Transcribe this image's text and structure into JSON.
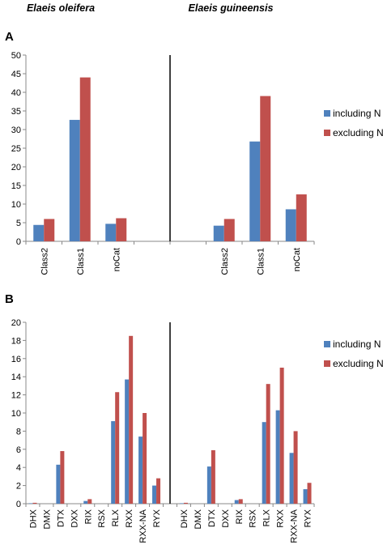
{
  "header": {
    "species_left": "Elaeis oleifera",
    "species_right": "Elaeis guineensis"
  },
  "colors": {
    "including": "#4F81BD",
    "excluding": "#C0504D"
  },
  "chart_data": [
    {
      "type": "bar",
      "panel_label": "A",
      "title": "",
      "xlabel": "",
      "ylabel": "",
      "ylim": [
        0,
        50
      ],
      "yticks": [
        0,
        5,
        10,
        15,
        20,
        25,
        30,
        35,
        40,
        45,
        50
      ],
      "grid": false,
      "legend_position": "right",
      "categories": [
        "Class2",
        "Class1",
        "noCat",
        "",
        "",
        "Class2",
        "Class1",
        "noCat"
      ],
      "series": [
        {
          "name": "including N",
          "values": [
            4.4,
            32.6,
            4.7,
            null,
            null,
            4.2,
            26.8,
            8.6
          ]
        },
        {
          "name": "excluding N",
          "values": [
            6.0,
            44.0,
            6.2,
            null,
            null,
            6.0,
            39.0,
            12.6
          ]
        }
      ]
    },
    {
      "type": "bar",
      "panel_label": "B",
      "title": "",
      "xlabel": "",
      "ylabel": "",
      "ylim": [
        0,
        20
      ],
      "yticks": [
        0,
        2,
        4,
        6,
        8,
        10,
        12,
        14,
        16,
        18,
        20
      ],
      "grid": false,
      "legend_position": "right",
      "categories": [
        "DHX",
        "DMX",
        "DTX",
        "DXX",
        "RIX",
        "RSX",
        "RLX",
        "RXX",
        "RXX-NA",
        "RYX",
        "",
        "DHX",
        "DMX",
        "DTX",
        "DXX",
        "RIX",
        "RSX",
        "RLX",
        "RXX",
        "RXX-NA",
        "RYX"
      ],
      "series": [
        {
          "name": "including N",
          "values": [
            0.05,
            0.0,
            4.3,
            0.0,
            0.3,
            0.0,
            9.1,
            13.7,
            7.4,
            2.0,
            null,
            0.05,
            0.0,
            4.1,
            0.0,
            0.4,
            0.0,
            9.0,
            10.3,
            5.6,
            1.6
          ]
        },
        {
          "name": "excluding N",
          "values": [
            0.1,
            0.0,
            5.8,
            0.0,
            0.5,
            0.0,
            12.3,
            18.5,
            10.0,
            2.8,
            null,
            0.1,
            0.0,
            5.9,
            0.0,
            0.5,
            0.0,
            13.2,
            15.0,
            8.0,
            2.3
          ]
        }
      ]
    }
  ]
}
